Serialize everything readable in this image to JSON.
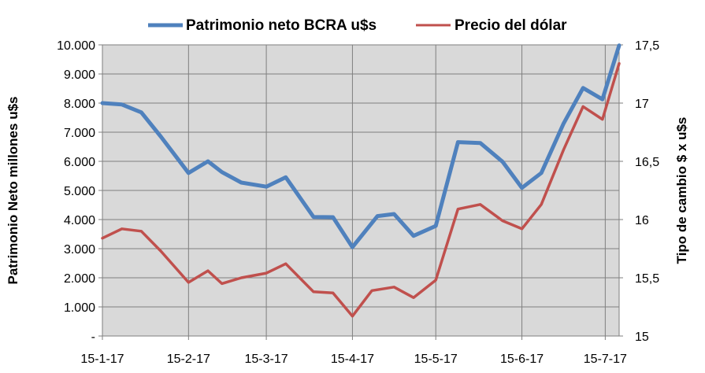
{
  "chart_data": {
    "type": "line",
    "legend_position": "top",
    "grid": true,
    "xlabel": "",
    "x_tick_labels": [
      "15-1-17",
      "15-2-17",
      "15-3-17",
      "15-4-17",
      "15-5-17",
      "15-6-17",
      "15-7-17"
    ],
    "y_left": {
      "label": "Patrimonio Neto millones u$s",
      "lim": [
        0,
        10000
      ],
      "tick_labels": [
        "-",
        "1.000",
        "2.000",
        "3.000",
        "4.000",
        "5.000",
        "6.000",
        "7.000",
        "8.000",
        "9.000",
        "10.000"
      ]
    },
    "y_right": {
      "label": "Tipo de cambio $ x u$s",
      "lim": [
        15,
        17.5
      ],
      "tick_labels": [
        "15",
        "15,5",
        "16",
        "16,5",
        "17",
        "17,5"
      ]
    },
    "x_start": "2017-01-15",
    "x_end": "2017-07-20",
    "series": [
      {
        "name": "Patrimonio neto BCRA u$s",
        "axis": "left",
        "color": "#4f81bd",
        "points": [
          {
            "x": "2017-01-15",
            "y": 8000
          },
          {
            "x": "2017-01-22",
            "y": 7950
          },
          {
            "x": "2017-01-29",
            "y": 7680
          },
          {
            "x": "2017-02-05",
            "y": 6850
          },
          {
            "x": "2017-02-15",
            "y": 5600
          },
          {
            "x": "2017-02-22",
            "y": 6000
          },
          {
            "x": "2017-02-27",
            "y": 5630
          },
          {
            "x": "2017-03-06",
            "y": 5270
          },
          {
            "x": "2017-03-15",
            "y": 5130
          },
          {
            "x": "2017-03-22",
            "y": 5450
          },
          {
            "x": "2017-04-01",
            "y": 4090
          },
          {
            "x": "2017-04-08",
            "y": 4080
          },
          {
            "x": "2017-04-15",
            "y": 3050
          },
          {
            "x": "2017-04-24",
            "y": 4120
          },
          {
            "x": "2017-04-30",
            "y": 4190
          },
          {
            "x": "2017-05-07",
            "y": 3440
          },
          {
            "x": "2017-05-15",
            "y": 3780
          },
          {
            "x": "2017-05-23",
            "y": 6660
          },
          {
            "x": "2017-05-31",
            "y": 6630
          },
          {
            "x": "2017-06-08",
            "y": 5990
          },
          {
            "x": "2017-06-15",
            "y": 5090
          },
          {
            "x": "2017-06-22",
            "y": 5600
          },
          {
            "x": "2017-06-30",
            "y": 7300
          },
          {
            "x": "2017-07-07",
            "y": 8520
          },
          {
            "x": "2017-07-14",
            "y": 8130
          },
          {
            "x": "2017-07-20",
            "y": 9980
          }
        ]
      },
      {
        "name": "Precio del dólar",
        "axis": "right",
        "color": "#c0504d",
        "points": [
          {
            "x": "2017-01-15",
            "y": 15.84
          },
          {
            "x": "2017-01-22",
            "y": 15.92
          },
          {
            "x": "2017-01-29",
            "y": 15.9
          },
          {
            "x": "2017-02-05",
            "y": 15.73
          },
          {
            "x": "2017-02-15",
            "y": 15.46
          },
          {
            "x": "2017-02-22",
            "y": 15.56
          },
          {
            "x": "2017-02-27",
            "y": 15.45
          },
          {
            "x": "2017-03-06",
            "y": 15.5
          },
          {
            "x": "2017-03-15",
            "y": 15.54
          },
          {
            "x": "2017-03-22",
            "y": 15.62
          },
          {
            "x": "2017-04-01",
            "y": 15.38
          },
          {
            "x": "2017-04-08",
            "y": 15.37
          },
          {
            "x": "2017-04-15",
            "y": 15.17
          },
          {
            "x": "2017-04-22",
            "y": 15.39
          },
          {
            "x": "2017-04-30",
            "y": 15.42
          },
          {
            "x": "2017-05-07",
            "y": 15.33
          },
          {
            "x": "2017-05-15",
            "y": 15.48
          },
          {
            "x": "2017-05-23",
            "y": 16.09
          },
          {
            "x": "2017-05-31",
            "y": 16.13
          },
          {
            "x": "2017-06-08",
            "y": 15.99
          },
          {
            "x": "2017-06-15",
            "y": 15.92
          },
          {
            "x": "2017-06-22",
            "y": 16.13
          },
          {
            "x": "2017-06-30",
            "y": 16.6
          },
          {
            "x": "2017-07-07",
            "y": 16.97
          },
          {
            "x": "2017-07-14",
            "y": 16.86
          },
          {
            "x": "2017-07-20",
            "y": 17.34
          }
        ]
      }
    ]
  }
}
